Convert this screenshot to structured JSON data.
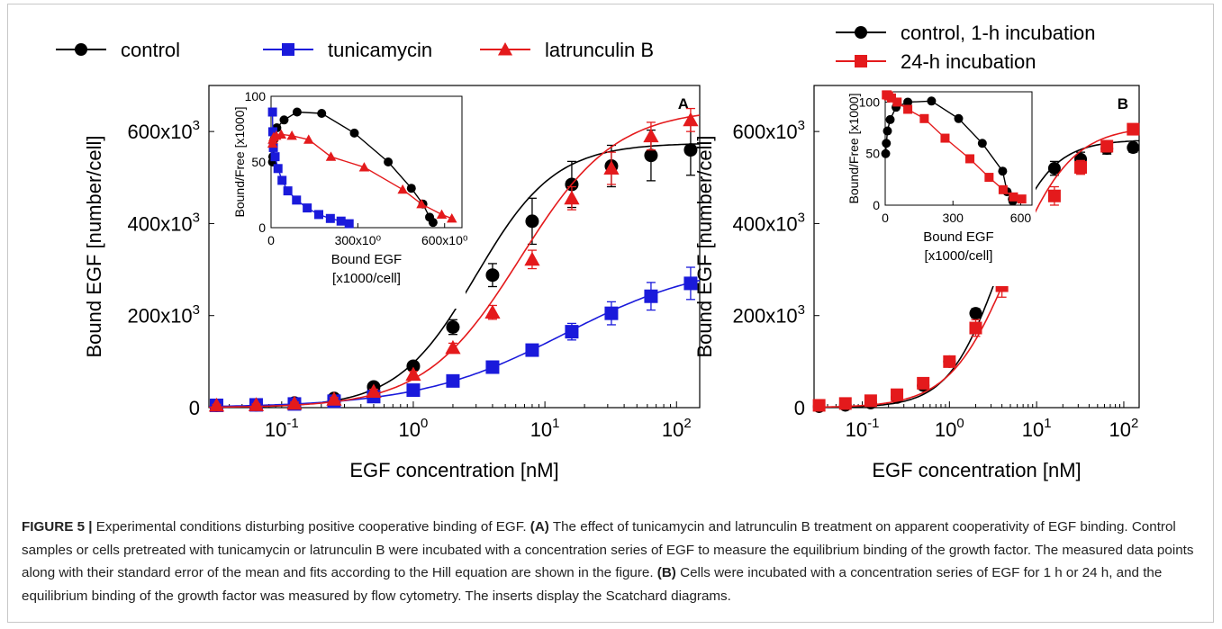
{
  "chart_data": [
    {
      "panel": "A",
      "type": "scatter",
      "panel_label": "A",
      "legend_position": "top",
      "xlabel": "EGF concentration [nM]",
      "ylabel": "Bound EGF [number/cell]",
      "x_scale": "log",
      "xlim": [
        0.028,
        150
      ],
      "ylim": [
        0,
        700000
      ],
      "x_ticks": [
        0.1,
        1,
        10,
        100
      ],
      "x_tick_labels": [
        {
          "base": "10",
          "exp": "-1"
        },
        {
          "base": "10",
          "exp": "0"
        },
        {
          "base": "10",
          "exp": "1"
        },
        {
          "base": "10",
          "exp": "2"
        }
      ],
      "y_ticks": [
        0,
        200000,
        400000,
        600000
      ],
      "y_tick_labels": [
        {
          "base": "0",
          "exp": ""
        },
        {
          "base": "200x10",
          "exp": "3"
        },
        {
          "base": "400x10",
          "exp": "3"
        },
        {
          "base": "600x10",
          "exp": "3"
        }
      ],
      "x": [
        0.032,
        0.064,
        0.125,
        0.25,
        0.5,
        1,
        2,
        4,
        8,
        16,
        32,
        64,
        128
      ],
      "series": [
        {
          "name": "control",
          "color": "#000000",
          "marker": "circle",
          "y": [
            5000,
            6000,
            10000,
            20000,
            45000,
            90000,
            175000,
            288000,
            405000,
            485000,
            525000,
            548000,
            560000
          ],
          "err": [
            3000,
            3000,
            4000,
            5000,
            6000,
            8000,
            16000,
            25000,
            50000,
            50000,
            45000,
            55000,
            55000
          ],
          "fit": {
            "ymax": 575000,
            "ec50": 3.0,
            "n": 1.45
          }
        },
        {
          "name": "tunicamycin",
          "color": "#1a1adb",
          "marker": "square",
          "y": [
            5000,
            6000,
            8000,
            14000,
            24000,
            38000,
            58000,
            88000,
            125000,
            165000,
            205000,
            242000,
            270000
          ],
          "err": [
            2000,
            2000,
            2000,
            3000,
            4000,
            5000,
            6000,
            8000,
            12000,
            18000,
            25000,
            30000,
            35000
          ],
          "fit": {
            "ymax": 320000,
            "ec50": 14.0,
            "n": 0.78
          }
        },
        {
          "name": "latrunculin B",
          "color": "#e41a1c",
          "marker": "triangle",
          "y": [
            5000,
            6000,
            9000,
            18000,
            35000,
            72000,
            130000,
            207000,
            322000,
            455000,
            520000,
            590000,
            625000
          ],
          "err": [
            2000,
            2000,
            3000,
            4000,
            5000,
            7000,
            10000,
            15000,
            20000,
            25000,
            35000,
            30000,
            25000
          ],
          "fit": {
            "ymax": 650000,
            "ec50": 6.5,
            "n": 1.2
          }
        }
      ],
      "inset": {
        "type": "scatter",
        "xlabel": "Bound EGF",
        "xlabel2": "[x1000/cell]",
        "ylabel": "Bound/Free [x1000]",
        "xlim": [
          0,
          660000
        ],
        "ylim": [
          0,
          100
        ],
        "x_ticks": [
          0,
          300000,
          600000
        ],
        "x_tick_labels": [
          "0",
          "300x10⁰",
          "600x10⁰"
        ],
        "y_ticks": [
          0,
          50,
          100
        ],
        "y_tick_labels": [
          "0",
          "50",
          "100"
        ],
        "series": [
          {
            "name": "control",
            "color": "#000000",
            "marker": "circle",
            "x": [
              5000,
              6000,
              10000,
              20000,
              45000,
              90000,
              175000,
              288000,
              405000,
              485000,
              525000,
              548000,
              560000
            ],
            "y": [
              50,
              54,
              67,
              76,
              82,
              88,
              87,
              72,
              50,
              30,
              18,
              8,
              4
            ]
          },
          {
            "name": "tunicamycin",
            "color": "#1a1adb",
            "marker": "square",
            "x": [
              5000,
              6000,
              8000,
              14000,
              24000,
              38000,
              58000,
              88000,
              125000,
              165000,
              205000,
              242000,
              270000
            ],
            "y": [
              88,
              73,
              61,
              54,
              45,
              36,
              28,
              21,
              15,
              10,
              7,
              5,
              3
            ]
          },
          {
            "name": "latrunculin B",
            "color": "#e41a1c",
            "marker": "triangle",
            "x": [
              5000,
              6000,
              9000,
              18000,
              35000,
              72000,
              130000,
              207000,
              322000,
              455000,
              520000,
              590000,
              625000
            ],
            "y": [
              64,
              67,
              69,
              70,
              71,
              70,
              67,
              54,
              46,
              29,
              18,
              10,
              7
            ]
          }
        ]
      }
    },
    {
      "panel": "B",
      "type": "scatter",
      "panel_label": "B",
      "legend_position": "top",
      "xlabel": "EGF concentration [nM]",
      "ylabel": "Bound EGF [number/cell]",
      "x_scale": "log",
      "xlim": [
        0.028,
        150
      ],
      "ylim": [
        0,
        700000
      ],
      "x_ticks": [
        0.1,
        1,
        10,
        100
      ],
      "x_tick_labels": [
        {
          "base": "10",
          "exp": "-1"
        },
        {
          "base": "10",
          "exp": "0"
        },
        {
          "base": "10",
          "exp": "1"
        },
        {
          "base": "10",
          "exp": "2"
        }
      ],
      "y_ticks": [
        0,
        200000,
        400000,
        600000
      ],
      "y_tick_labels": [
        {
          "base": "0",
          "exp": ""
        },
        {
          "base": "200x10",
          "exp": "3"
        },
        {
          "base": "400x10",
          "exp": "3"
        },
        {
          "base": "600x10",
          "exp": "3"
        }
      ],
      "x": [
        0.032,
        0.064,
        0.125,
        0.25,
        0.5,
        1,
        2,
        4,
        8,
        16,
        32,
        64,
        128
      ],
      "series": [
        {
          "name": "control, 1-h incubation",
          "color": "#000000",
          "marker": "circle",
          "y": [
            2000,
            5000,
            10000,
            22000,
            48000,
            100000,
            205000,
            325000,
            430000,
            520000,
            540000,
            563000,
            565000
          ],
          "err": [
            2000,
            2000,
            3000,
            3000,
            4000,
            6000,
            10000,
            20000,
            15000,
            15000,
            15000,
            12000,
            10000
          ],
          "fit": {
            "ymax": 582000,
            "ec50": 3.6,
            "n": 1.5
          }
        },
        {
          "name": "24-h incubation",
          "color": "#e41a1c",
          "marker": "square",
          "y": [
            5000,
            9000,
            15000,
            28000,
            53000,
            100000,
            173000,
            265000,
            375000,
            460000,
            522000,
            568000,
            605000
          ],
          "err": [
            2000,
            3000,
            4000,
            5000,
            5000,
            8000,
            18000,
            25000,
            20000,
            20000,
            15000,
            12000,
            10000
          ],
          "fit": {
            "ymax": 612000,
            "ec50": 5.0,
            "n": 1.25
          }
        }
      ],
      "inset": {
        "type": "scatter",
        "xlabel": "Bound EGF",
        "xlabel2": "[x1000/cell]",
        "ylabel": "Bound/Free [x1000]",
        "xlim": [
          0,
          650000
        ],
        "ylim": [
          0,
          110
        ],
        "x_ticks": [
          0,
          300000,
          600000
        ],
        "x_tick_labels": [
          "0",
          "300",
          "600"
        ],
        "y_ticks": [
          0,
          50,
          100
        ],
        "y_tick_labels": [
          "0",
          "50",
          "100"
        ],
        "series": [
          {
            "name": "control, 1-h incubation",
            "color": "#000000",
            "marker": "circle",
            "x": [
              2000,
              5000,
              10000,
              22000,
              48000,
              100000,
              205000,
              325000,
              430000,
              520000,
              540000,
              563000,
              565000
            ],
            "y": [
              50,
              60,
              72,
              83,
              95,
              100,
              101,
              84,
              60,
              33,
              13,
              6,
              4
            ]
          },
          {
            "name": "24-h incubation",
            "color": "#e41a1c",
            "marker": "square",
            "x": [
              5000,
              9000,
              15000,
              28000,
              53000,
              100000,
              173000,
              265000,
              375000,
              460000,
              522000,
              568000,
              605000
            ],
            "y": [
              107,
              107,
              106,
              104,
              100,
              93,
              84,
              65,
              45,
              27,
              15,
              8,
              6
            ]
          }
        ]
      }
    }
  ],
  "caption": {
    "label": "FIGURE 5 |",
    "intro": " Experimental conditions disturbing positive cooperative binding of EGF. ",
    "a_label": "(A)",
    "a_text": " The effect of tunicamycin and latrunculin B treatment on apparent cooperativity of EGF binding. Control samples or cells pretreated with tunicamycin or latrunculin B were incubated with a concentration series of EGF to measure the equilibrium binding of the growth factor. The measured data points along with their standard error of the mean and fits according to the Hill equation are shown in the figure. ",
    "b_label": "(B)",
    "b_text": " Cells were incubated with a concentration series of EGF for 1 h or 24 h, and the equilibrium binding of the growth factor was measured by flow cytometry. The inserts display the Scatchard diagrams."
  }
}
